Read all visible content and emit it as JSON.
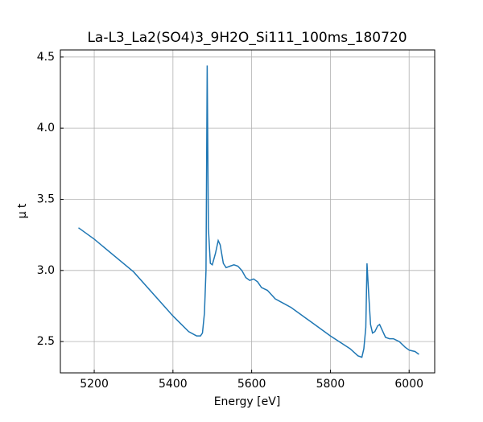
{
  "chart_data": {
    "type": "line",
    "title": "La-L3_La2(SO4)3_9H2O_Si111_100ms_180720",
    "xlabel": "Energy [eV]",
    "ylabel": "μ t",
    "x": [
      5160,
      5200,
      5300,
      5400,
      5440,
      5460,
      5470,
      5475,
      5480,
      5484,
      5487,
      5490,
      5495,
      5500,
      5508,
      5515,
      5520,
      5528,
      5535,
      5545,
      5555,
      5565,
      5575,
      5585,
      5595,
      5605,
      5615,
      5625,
      5640,
      5660,
      5680,
      5700,
      5750,
      5800,
      5850,
      5870,
      5880,
      5885,
      5890,
      5893,
      5897,
      5902,
      5907,
      5913,
      5920,
      5925,
      5930,
      5940,
      5950,
      5960,
      5975,
      5990,
      6000,
      6015,
      6025
    ],
    "series": [
      {
        "name": "μ t",
        "color": "#1f77b4",
        "values": [
          3.3,
          3.22,
          2.99,
          2.68,
          2.57,
          2.54,
          2.54,
          2.56,
          2.7,
          3.0,
          4.44,
          3.3,
          3.05,
          3.04,
          3.12,
          3.21,
          3.18,
          3.05,
          3.02,
          3.03,
          3.04,
          3.03,
          3.0,
          2.95,
          2.93,
          2.94,
          2.92,
          2.88,
          2.86,
          2.8,
          2.77,
          2.74,
          2.64,
          2.54,
          2.45,
          2.4,
          2.39,
          2.45,
          2.6,
          3.05,
          2.85,
          2.62,
          2.56,
          2.57,
          2.61,
          2.62,
          2.59,
          2.53,
          2.52,
          2.52,
          2.5,
          2.46,
          2.44,
          2.43,
          2.41
        ]
      }
    ],
    "xlim": [
      5114,
      6065
    ],
    "ylim": [
      2.28,
      4.55
    ],
    "xticks": [
      5200,
      5400,
      5600,
      5800,
      6000
    ],
    "yticks": [
      2.5,
      {
        "value": 3,
        "label": "3.0"
      },
      3.5,
      {
        "value": 4,
        "label": "4.0"
      },
      4.5
    ],
    "grid": true
  }
}
